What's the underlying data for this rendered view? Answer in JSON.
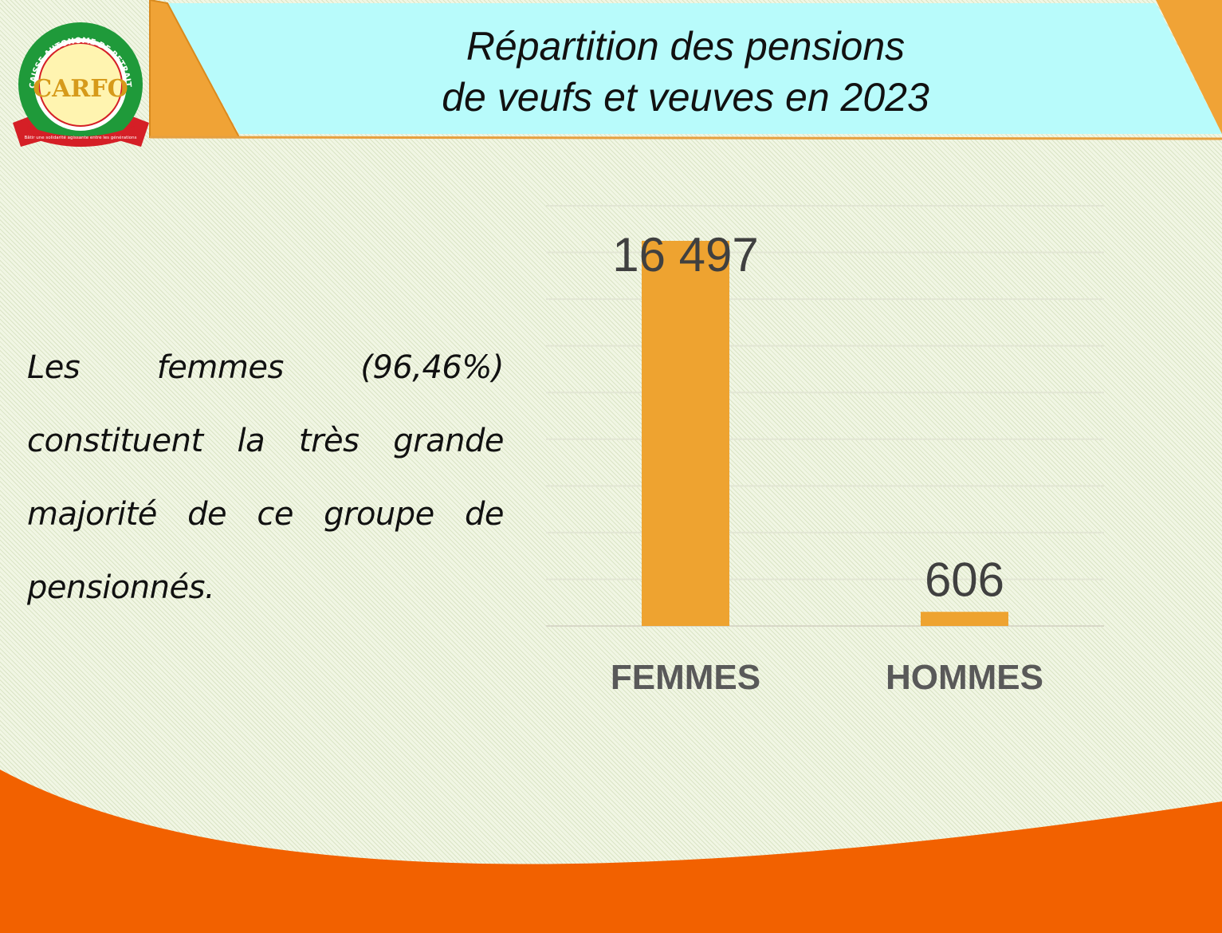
{
  "header": {
    "title_line1": "Répartition des pensions",
    "title_line2": "de veufs et veuves en 2023"
  },
  "logo": {
    "ring_text": "CAISSE AUTONOME DE RETRAITE DES FONCTIONNAIRES",
    "initials": "CARFO",
    "motto": "Bâtir une solidarité agissante entre les générations"
  },
  "body_text": "Les femmes (96,46%) constituent la très grande majorité de ce groupe de pensionnés.",
  "colors": {
    "bar": "#eea330",
    "header_bg": "#b8fbfb",
    "accent_orange": "#f0a336",
    "wave_orange": "#f26100",
    "logo_green": "#1f9a3a",
    "logo_red": "#d51f26"
  },
  "chart_data": {
    "type": "bar",
    "categories": [
      "FEMMES",
      "HOMMES"
    ],
    "values": [
      16497,
      606
    ],
    "value_labels": [
      "16 497",
      "606"
    ],
    "ylim": [
      0,
      18000
    ],
    "grid": true,
    "title": "",
    "xlabel": "",
    "ylabel": ""
  }
}
